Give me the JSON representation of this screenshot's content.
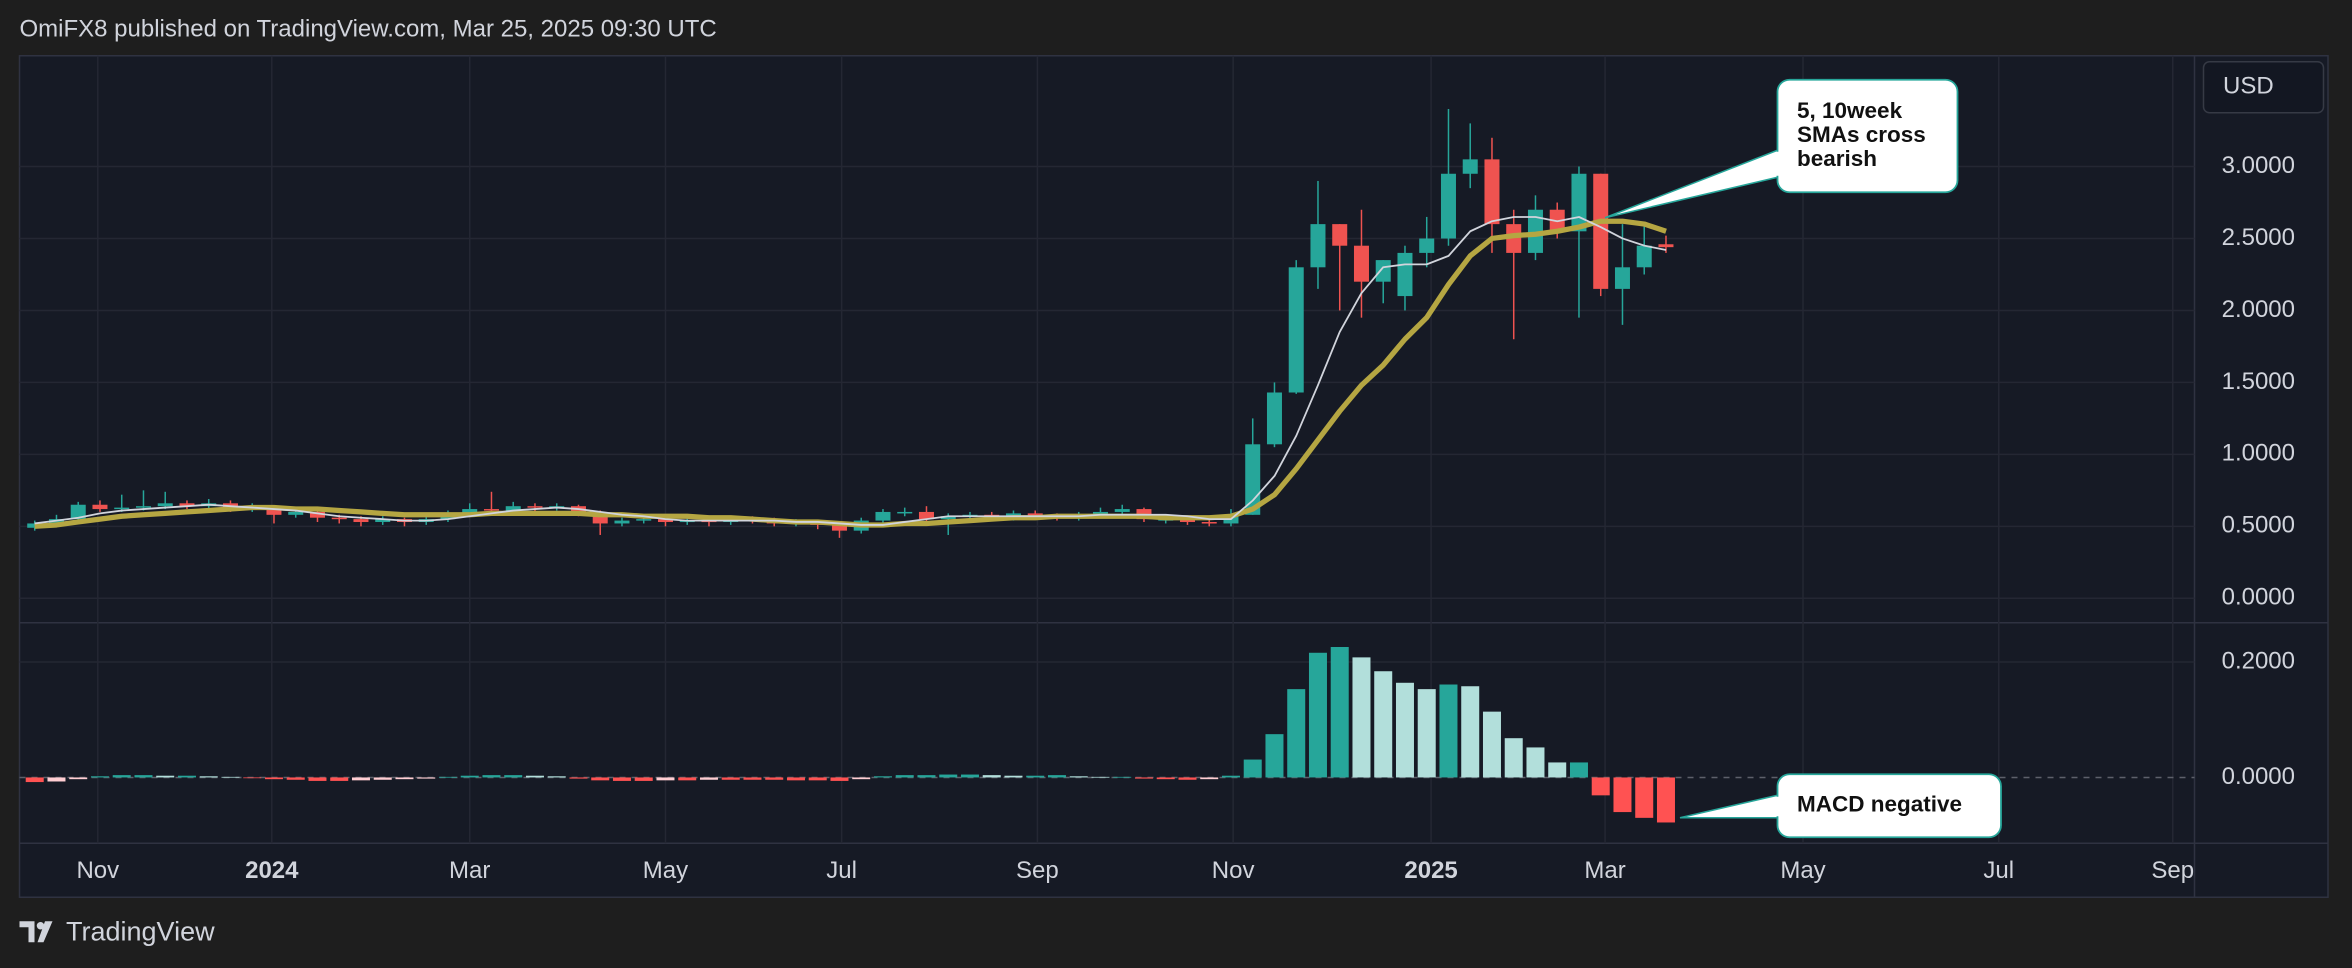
{
  "header": {
    "text": "OmiFX8 published on TradingView.com, Mar 25, 2025 09:30 UTC",
    "currency": "USD"
  },
  "footer": {
    "brand": "TradingView"
  },
  "chart_data": {
    "type": "candlestick",
    "up_color": "#26a69a",
    "down_color": "#ef5350",
    "open": [
      0.49,
      0.52,
      0.55,
      0.65,
      0.62,
      0.63,
      0.64,
      0.66,
      0.64,
      0.66,
      0.62,
      0.63,
      0.58,
      0.6,
      0.56,
      0.55,
      0.53,
      0.55,
      0.53,
      0.55,
      0.59,
      0.62,
      0.61,
      0.64,
      0.63,
      0.64,
      0.6,
      0.52,
      0.54,
      0.55,
      0.53,
      0.54,
      0.53,
      0.55,
      0.54,
      0.52,
      0.53,
      0.51,
      0.47,
      0.54,
      0.6,
      0.6,
      0.55,
      0.57,
      0.58,
      0.56,
      0.59,
      0.57,
      0.56,
      0.58,
      0.6,
      0.62,
      0.55,
      0.55,
      0.53,
      0.52,
      0.58,
      1.07,
      1.43,
      2.3,
      2.6,
      2.45,
      2.2,
      2.1,
      2.4,
      2.5,
      2.95,
      3.05,
      2.6,
      2.4,
      2.7,
      2.55,
      2.95,
      2.15,
      2.3,
      2.46
    ],
    "high": [
      0.54,
      0.58,
      0.67,
      0.68,
      0.72,
      0.75,
      0.74,
      0.68,
      0.69,
      0.68,
      0.66,
      0.64,
      0.62,
      0.62,
      0.58,
      0.57,
      0.57,
      0.56,
      0.57,
      0.61,
      0.66,
      0.74,
      0.67,
      0.66,
      0.66,
      0.65,
      0.61,
      0.56,
      0.57,
      0.57,
      0.56,
      0.56,
      0.57,
      0.57,
      0.56,
      0.55,
      0.54,
      0.53,
      0.56,
      0.62,
      0.63,
      0.64,
      0.59,
      0.6,
      0.6,
      0.61,
      0.61,
      0.59,
      0.6,
      0.63,
      0.65,
      0.63,
      0.57,
      0.56,
      0.55,
      0.62,
      1.25,
      1.5,
      2.35,
      2.9,
      2.6,
      2.7,
      2.35,
      2.45,
      2.65,
      3.4,
      3.3,
      3.2,
      2.7,
      2.8,
      2.75,
      3.0,
      2.95,
      2.6,
      2.6,
      2.52
    ],
    "low": [
      0.47,
      0.5,
      0.53,
      0.6,
      0.6,
      0.61,
      0.62,
      0.62,
      0.62,
      0.6,
      0.6,
      0.52,
      0.56,
      0.53,
      0.52,
      0.5,
      0.51,
      0.5,
      0.51,
      0.53,
      0.57,
      0.59,
      0.59,
      0.6,
      0.61,
      0.57,
      0.44,
      0.5,
      0.52,
      0.5,
      0.51,
      0.5,
      0.51,
      0.52,
      0.5,
      0.5,
      0.48,
      0.42,
      0.45,
      0.52,
      0.57,
      0.53,
      0.44,
      0.55,
      0.54,
      0.54,
      0.55,
      0.54,
      0.54,
      0.56,
      0.58,
      0.53,
      0.52,
      0.51,
      0.5,
      0.5,
      0.58,
      1.05,
      1.42,
      2.15,
      2.0,
      1.95,
      2.05,
      2.0,
      2.3,
      2.45,
      2.85,
      2.4,
      1.8,
      2.35,
      2.5,
      1.95,
      2.1,
      1.9,
      2.25,
      2.4
    ],
    "close": [
      0.52,
      0.55,
      0.65,
      0.62,
      0.63,
      0.64,
      0.66,
      0.64,
      0.66,
      0.62,
      0.63,
      0.58,
      0.6,
      0.56,
      0.55,
      0.53,
      0.55,
      0.53,
      0.55,
      0.59,
      0.62,
      0.61,
      0.64,
      0.63,
      0.64,
      0.6,
      0.52,
      0.54,
      0.55,
      0.53,
      0.54,
      0.53,
      0.55,
      0.54,
      0.52,
      0.53,
      0.51,
      0.47,
      0.54,
      0.6,
      0.6,
      0.55,
      0.57,
      0.58,
      0.56,
      0.59,
      0.57,
      0.56,
      0.58,
      0.6,
      0.62,
      0.55,
      0.55,
      0.53,
      0.52,
      0.58,
      1.07,
      1.43,
      2.3,
      2.6,
      2.45,
      2.2,
      2.35,
      2.4,
      2.5,
      2.95,
      3.05,
      2.6,
      2.4,
      2.7,
      2.55,
      2.95,
      2.15,
      2.3,
      2.45,
      2.44
    ],
    "sma5": {
      "color": "#d1d4dc",
      "values": [
        0.52,
        0.54,
        0.56,
        0.59,
        0.61,
        0.62,
        0.63,
        0.64,
        0.65,
        0.64,
        0.63,
        0.62,
        0.61,
        0.59,
        0.57,
        0.56,
        0.55,
        0.54,
        0.54,
        0.55,
        0.57,
        0.59,
        0.61,
        0.62,
        0.63,
        0.62,
        0.6,
        0.58,
        0.57,
        0.55,
        0.54,
        0.54,
        0.54,
        0.54,
        0.54,
        0.53,
        0.53,
        0.52,
        0.51,
        0.51,
        0.53,
        0.55,
        0.57,
        0.57,
        0.57,
        0.57,
        0.57,
        0.57,
        0.57,
        0.58,
        0.58,
        0.58,
        0.58,
        0.57,
        0.55,
        0.55,
        0.68,
        0.85,
        1.13,
        1.48,
        1.85,
        2.12,
        2.3,
        2.32,
        2.32,
        2.38,
        2.55,
        2.62,
        2.65,
        2.65,
        2.62,
        2.65,
        2.58,
        2.5,
        2.45,
        2.42
      ]
    },
    "sma10": {
      "color": "#b5a642",
      "values": [
        0.5,
        0.51,
        0.53,
        0.55,
        0.57,
        0.58,
        0.59,
        0.6,
        0.61,
        0.62,
        0.63,
        0.63,
        0.62,
        0.62,
        0.61,
        0.6,
        0.59,
        0.58,
        0.58,
        0.58,
        0.58,
        0.59,
        0.59,
        0.59,
        0.59,
        0.59,
        0.58,
        0.58,
        0.57,
        0.57,
        0.57,
        0.56,
        0.56,
        0.55,
        0.54,
        0.53,
        0.53,
        0.52,
        0.51,
        0.51,
        0.52,
        0.52,
        0.53,
        0.54,
        0.55,
        0.56,
        0.56,
        0.57,
        0.57,
        0.57,
        0.57,
        0.57,
        0.56,
        0.56,
        0.56,
        0.57,
        0.62,
        0.72,
        0.9,
        1.1,
        1.3,
        1.48,
        1.62,
        1.8,
        1.95,
        2.18,
        2.38,
        2.5,
        2.52,
        2.53,
        2.55,
        2.58,
        2.62,
        2.62,
        2.6,
        2.55
      ]
    },
    "ylim": [
      -0.17,
      3.77
    ],
    "yticks": [
      {
        "value": 0,
        "label": "0.0000"
      },
      {
        "value": 0.5,
        "label": "0.5000"
      },
      {
        "value": 1,
        "label": "1.0000"
      },
      {
        "value": 1.5,
        "label": "1.5000"
      },
      {
        "value": 2,
        "label": "2.0000"
      },
      {
        "value": 2.5,
        "label": "2.5000"
      },
      {
        "value": 3,
        "label": "3.0000"
      }
    ],
    "xlim": [
      -0.7,
      99.3
    ],
    "xticks": [
      {
        "value": 2.9,
        "label": "Nov"
      },
      {
        "value": 10.9,
        "label": "2024"
      },
      {
        "value": 20.0,
        "label": "Mar"
      },
      {
        "value": 29.0,
        "label": "May"
      },
      {
        "value": 37.1,
        "label": "Jul"
      },
      {
        "value": 46.1,
        "label": "Sep"
      },
      {
        "value": 55.1,
        "label": "Nov"
      },
      {
        "value": 64.2,
        "label": "2025"
      },
      {
        "value": 72.2,
        "label": "Mar"
      },
      {
        "value": 81.3,
        "label": "May"
      },
      {
        "value": 90.3,
        "label": "Jul"
      },
      {
        "value": 98.3,
        "label": "Sep"
      }
    ],
    "grid": true,
    "macd": {
      "colors": {
        "up_rising": "#26a69a",
        "up_falling": "#b2dfdb",
        "down_rising": "#ffcdd2",
        "down_falling": "#ff5252"
      },
      "values": [
        -0.008,
        -0.007,
        -0.003,
        0.002,
        0.004,
        0.004,
        0.003,
        0.003,
        0.002,
        0.001,
        -0.001,
        -0.003,
        -0.004,
        -0.006,
        -0.006,
        -0.005,
        -0.004,
        -0.003,
        -0.002,
        0.001,
        0.003,
        0.004,
        0.004,
        0.003,
        0.002,
        -0.002,
        -0.005,
        -0.006,
        -0.006,
        -0.005,
        -0.005,
        -0.004,
        -0.004,
        -0.004,
        -0.004,
        -0.005,
        -0.005,
        -0.006,
        -0.003,
        0.002,
        0.004,
        0.004,
        0.005,
        0.005,
        0.004,
        0.003,
        0.003,
        0.004,
        0.002,
        0.001,
        0.001,
        -0.002,
        -0.003,
        -0.004,
        -0.003,
        0.003,
        0.031,
        0.075,
        0.153,
        0.216,
        0.226,
        0.208,
        0.184,
        0.164,
        0.153,
        0.161,
        0.158,
        0.114,
        0.068,
        0.052,
        0.026,
        0.026,
        -0.031,
        -0.06,
        -0.07,
        -0.078
      ],
      "ylim": [
        -0.114,
        0.268
      ],
      "yticks": [
        {
          "value": 0,
          "label": "0.0000"
        },
        {
          "value": 0.2,
          "label": "0.2000"
        }
      ]
    },
    "annotations": [
      [
        "5, 10week",
        "SMAs cross",
        "bearish"
      ],
      [
        "MACD negative"
      ]
    ]
  }
}
